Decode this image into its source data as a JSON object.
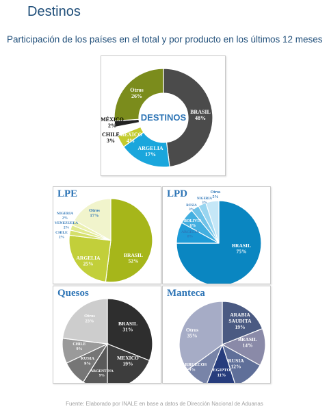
{
  "header": {
    "title": "Destinos",
    "subtitle": "Participación de los países en el total y por producto en los últimos 12 meses"
  },
  "source": "Fuente: Elaborado por INALE en base a datos de Dirección Nacional de Aduanas",
  "chart_data": [
    {
      "type": "pie",
      "variant": "donut",
      "center_label": "DESTINOS",
      "title": "",
      "slices": [
        {
          "label": "BRASIL",
          "value": 48,
          "color": "#4b4b4b"
        },
        {
          "label": "ARGELIA",
          "value": 17,
          "color": "#1aa6dc"
        },
        {
          "label": "MEXICO",
          "value": 4,
          "color": "#c3cb2e"
        },
        {
          "label": "CHILE",
          "value": 3,
          "color": "#ffffff"
        },
        {
          "label": "MÉXICO",
          "value": 2,
          "color": "#222222"
        },
        {
          "label": "Otros",
          "value": 26,
          "color": "#7b8c1c"
        }
      ]
    },
    {
      "type": "pie",
      "title": "LPE",
      "slices": [
        {
          "label": "BRASIL",
          "value": 52,
          "color": "#a6b61a"
        },
        {
          "label": "ARGELIA",
          "value": 25,
          "color": "#c2cf3a"
        },
        {
          "label": "CHILE",
          "value": 2,
          "color": "#d4df6a"
        },
        {
          "label": "VENEZUELA",
          "value": 2,
          "color": "#e0e98c"
        },
        {
          "label": "NIGERIA",
          "value": 2,
          "color": "#ebf0b0"
        },
        {
          "label": "Otros",
          "value": 17,
          "color": "#f1f4cc"
        }
      ]
    },
    {
      "type": "pie",
      "title": "LPD",
      "slices": [
        {
          "label": "BRASIL",
          "value": 75,
          "color": "#0a86c1"
        },
        {
          "label": "ARGELIA",
          "value": 8,
          "color": "#1e9bd7"
        },
        {
          "label": "BOLIVIA",
          "value": 6,
          "color": "#43afe0"
        },
        {
          "label": "RUSIA",
          "value": 3,
          "color": "#6ec2e8"
        },
        {
          "label": "NIGERIA",
          "value": 3,
          "color": "#98d5f0"
        },
        {
          "label": "Otros",
          "value": 5,
          "color": "#c5e7f7"
        }
      ]
    },
    {
      "type": "pie",
      "title": "Quesos",
      "slices": [
        {
          "label": "BRASIL",
          "value": 31,
          "color": "#2e2e2e"
        },
        {
          "label": "MEXICO",
          "value": 19,
          "color": "#3d3d3d"
        },
        {
          "label": "ARGENTINA",
          "value": 9,
          "color": "#5a5a5a"
        },
        {
          "label": "RUSIA",
          "value": 9,
          "color": "#767676"
        },
        {
          "label": "CHILE",
          "value": 9,
          "color": "#9a9a9a"
        },
        {
          "label": "Otros",
          "value": 23,
          "color": "#cdcdcd"
        }
      ]
    },
    {
      "type": "pie",
      "title": "Manteca",
      "slices": [
        {
          "label": "ARABIA SAUDITA",
          "value": 19,
          "color": "#4a5a82"
        },
        {
          "label": "BRASIL",
          "value": 14,
          "color": "#8a8aa8"
        },
        {
          "label": "RUSIA",
          "value": 12,
          "color": "#5f6f99"
        },
        {
          "label": "EGIPTO",
          "value": 11,
          "color": "#273d7d"
        },
        {
          "label": "MARRUECOS",
          "value": 9,
          "color": "#7884a8"
        },
        {
          "label": "Otros",
          "value": 35,
          "color": "#a6acc6"
        }
      ]
    }
  ]
}
